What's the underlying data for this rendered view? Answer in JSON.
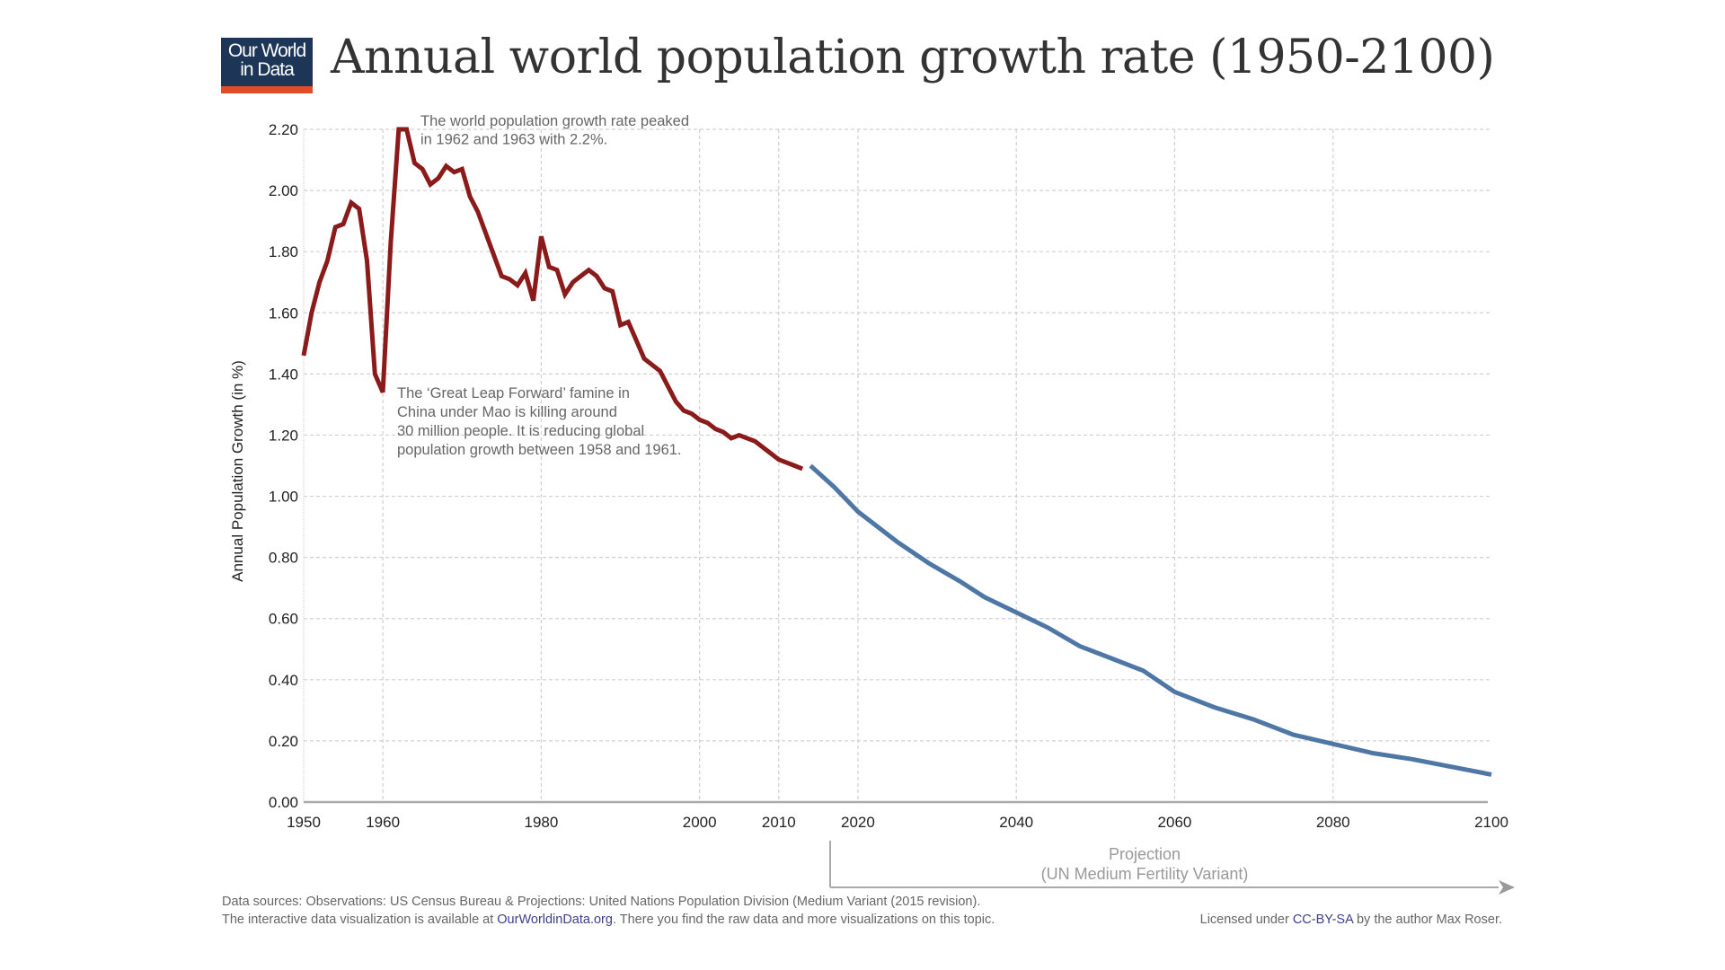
{
  "header": {
    "logo_line1": "Our World",
    "logo_line2": "in Data",
    "title": "Annual world population growth rate (1950-2100)"
  },
  "colors": {
    "historical": "#8b1a1a",
    "projection": "#4f77a6",
    "logo_bg": "#1d3557",
    "logo_accent": "#e04b2a",
    "link": "#3d3f8a"
  },
  "chart_data": {
    "type": "line",
    "title": "Annual world population growth rate (1950-2100)",
    "xlabel": "",
    "ylabel": "Annual Population Growth (in %)",
    "xlim": [
      1950,
      2100
    ],
    "ylim": [
      0,
      2.2
    ],
    "grid": true,
    "x_ticks": [
      1950,
      1960,
      1980,
      2000,
      2010,
      2020,
      2040,
      2060,
      2080,
      2100
    ],
    "y_ticks": [
      "0.00",
      "0.20",
      "0.40",
      "0.60",
      "0.80",
      "1.00",
      "1.20",
      "1.40",
      "1.60",
      "1.80",
      "2.00",
      "2.20"
    ],
    "series": [
      {
        "name": "Observations (US Census Bureau)",
        "points": [
          [
            1950,
            1.46
          ],
          [
            1951,
            1.6
          ],
          [
            1952,
            1.7
          ],
          [
            1953,
            1.77
          ],
          [
            1954,
            1.88
          ],
          [
            1955,
            1.89
          ],
          [
            1956,
            1.96
          ],
          [
            1957,
            1.94
          ],
          [
            1958,
            1.77
          ],
          [
            1959,
            1.4
          ],
          [
            1960,
            1.34
          ],
          [
            1961,
            1.83
          ],
          [
            1962,
            2.2
          ],
          [
            1963,
            2.2
          ],
          [
            1964,
            2.09
          ],
          [
            1965,
            2.07
          ],
          [
            1966,
            2.02
          ],
          [
            1967,
            2.04
          ],
          [
            1968,
            2.08
          ],
          [
            1969,
            2.06
          ],
          [
            1970,
            2.07
          ],
          [
            1971,
            1.98
          ],
          [
            1972,
            1.93
          ],
          [
            1973,
            1.86
          ],
          [
            1974,
            1.79
          ],
          [
            1975,
            1.72
          ],
          [
            1976,
            1.71
          ],
          [
            1977,
            1.69
          ],
          [
            1978,
            1.73
          ],
          [
            1979,
            1.64
          ],
          [
            1980,
            1.85
          ],
          [
            1981,
            1.75
          ],
          [
            1982,
            1.74
          ],
          [
            1983,
            1.66
          ],
          [
            1984,
            1.7
          ],
          [
            1985,
            1.72
          ],
          [
            1986,
            1.74
          ],
          [
            1987,
            1.72
          ],
          [
            1988,
            1.68
          ],
          [
            1989,
            1.67
          ],
          [
            1990,
            1.56
          ],
          [
            1991,
            1.57
          ],
          [
            1992,
            1.51
          ],
          [
            1993,
            1.45
          ],
          [
            1994,
            1.43
          ],
          [
            1995,
            1.41
          ],
          [
            1996,
            1.36
          ],
          [
            1997,
            1.31
          ],
          [
            1998,
            1.28
          ],
          [
            1999,
            1.27
          ],
          [
            2000,
            1.25
          ],
          [
            2001,
            1.24
          ],
          [
            2002,
            1.22
          ],
          [
            2003,
            1.21
          ],
          [
            2004,
            1.19
          ],
          [
            2005,
            1.2
          ],
          [
            2006,
            1.19
          ],
          [
            2007,
            1.18
          ],
          [
            2008,
            1.16
          ],
          [
            2009,
            1.14
          ],
          [
            2010,
            1.12
          ],
          [
            2011,
            1.11
          ],
          [
            2012,
            1.1
          ],
          [
            2013,
            1.09
          ]
        ]
      },
      {
        "name": "Projection (UN Medium Fertility Variant)",
        "points": [
          [
            2014,
            1.1
          ],
          [
            2017,
            1.03
          ],
          [
            2020,
            0.95
          ],
          [
            2022.5,
            0.9
          ],
          [
            2025,
            0.85
          ],
          [
            2029,
            0.78
          ],
          [
            2033,
            0.72
          ],
          [
            2036,
            0.67
          ],
          [
            2040,
            0.62
          ],
          [
            2044,
            0.57
          ],
          [
            2048,
            0.51
          ],
          [
            2052,
            0.47
          ],
          [
            2056,
            0.43
          ],
          [
            2060,
            0.36
          ],
          [
            2065,
            0.31
          ],
          [
            2070,
            0.27
          ],
          [
            2075,
            0.22
          ],
          [
            2080,
            0.19
          ],
          [
            2085,
            0.16
          ],
          [
            2090,
            0.14
          ],
          [
            2100,
            0.09
          ]
        ]
      }
    ],
    "annotations": [
      {
        "text_lines": [
          "The world population growth rate peaked",
          "in 1962 and 1963 with 2.2%."
        ]
      },
      {
        "text_lines": [
          "The ‘Great Leap Forward’ famine in",
          "China under Mao is killing around",
          "30 million people. It is reducing global",
          "population growth between 1958 and 1961."
        ]
      }
    ],
    "projection_label": [
      "Projection",
      "(UN Medium Fertility Variant)"
    ]
  },
  "footer": {
    "sources": "Data sources: Observations: US Census Bureau & Projections: United Nations Population Division (Medium Variant (2015 revision).",
    "interactive_prefix": "The interactive data visualization is available at ",
    "interactive_link": "OurWorldinData.org",
    "interactive_suffix": ". There you find the raw data and more visualizations on this topic.",
    "license_prefix": "Licensed under ",
    "license_link": "CC-BY-SA",
    "license_suffix": " by the author Max Roser."
  }
}
